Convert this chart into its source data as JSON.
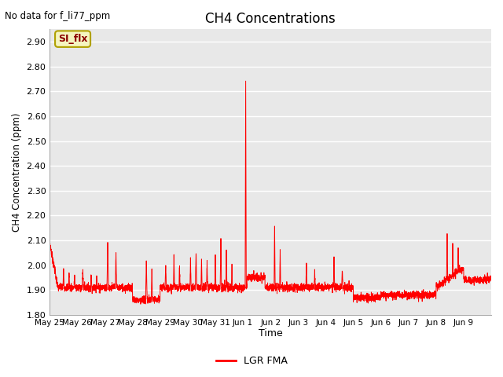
{
  "title": "CH4 Concentrations",
  "ylabel": "CH4 Concentration (ppm)",
  "xlabel": "Time",
  "top_left_text": "No data for f_li77_ppm",
  "legend_label": "LGR FMA",
  "annotation_text": "SI_flx",
  "line_color": "#ff0000",
  "fig_bg_color": "#ffffff",
  "plot_bg_color": "#e8e8e8",
  "grid_color": "#ffffff",
  "ylim": [
    1.8,
    2.95
  ],
  "yticks": [
    1.8,
    1.9,
    2.0,
    2.1,
    2.2,
    2.3,
    2.4,
    2.5,
    2.6,
    2.7,
    2.8,
    2.9
  ],
  "x_tick_labels": [
    "May 25",
    "May 26",
    "May 27",
    "May 28",
    "May 29",
    "May 30",
    "May 31",
    "Jun 1",
    "Jun 2",
    "Jun 3",
    "Jun 4",
    "Jun 5",
    "Jun 6",
    "Jun 7",
    "Jun 8",
    "Jun 9"
  ]
}
